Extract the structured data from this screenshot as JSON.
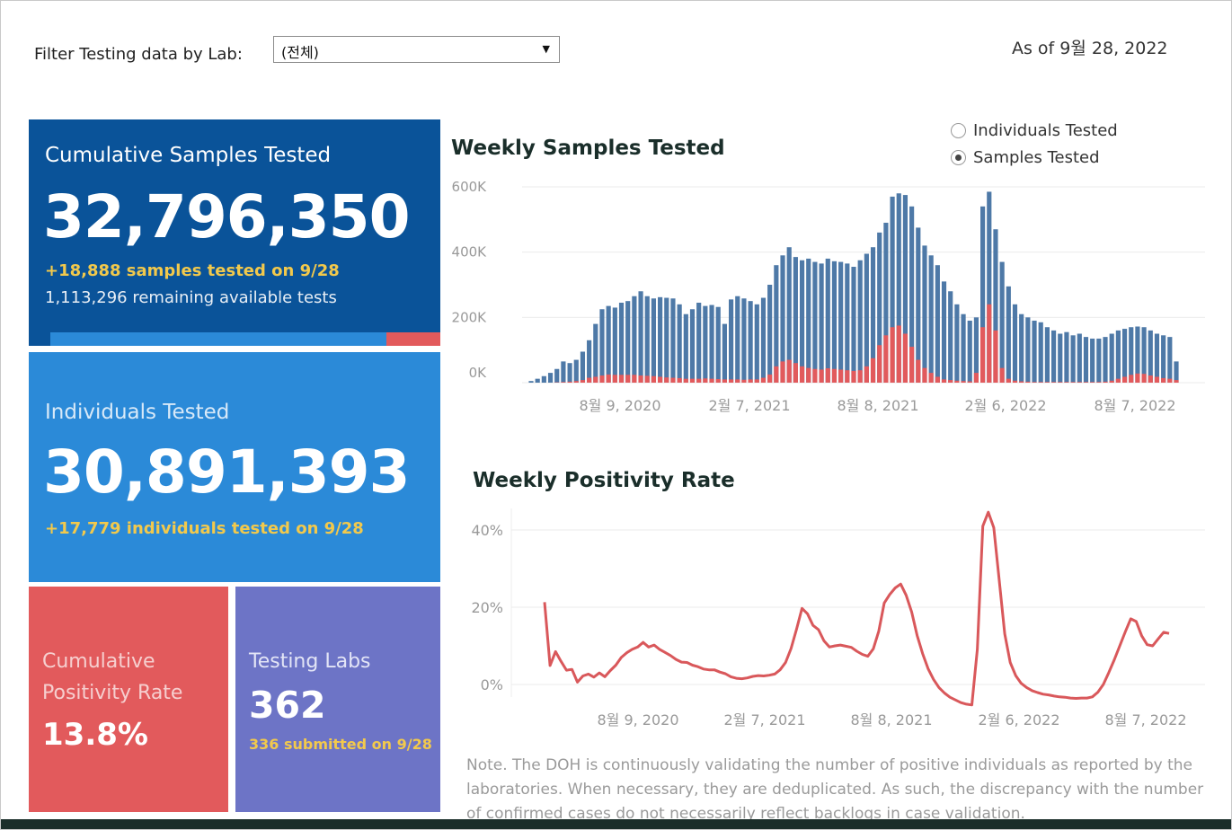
{
  "filter": {
    "label": "Filter Testing data by Lab:",
    "value": "(전체)"
  },
  "as_of": "As of 9월 28, 2022",
  "cards": {
    "cumulative": {
      "title": "Cumulative Samples Tested",
      "value": "32,796,350",
      "today": "+18,888 samples tested on 9/28",
      "remaining": "1,113,296 remaining available tests",
      "capacity_used_fraction": 0.86
    },
    "individuals": {
      "title": "Individuals Tested",
      "value": "30,891,393",
      "today": "+17,779  individuals  tested on 9/28"
    },
    "positivity": {
      "title_line1": "Cumulative",
      "title_line2": "Positivity Rate",
      "value": "13.8%"
    },
    "labs": {
      "title": "Testing Labs",
      "value": "362",
      "submitted": "336 submitted on 9/28"
    }
  },
  "toggle": {
    "options": [
      "Individuals Tested",
      "Samples Tested"
    ],
    "selected": "Samples Tested"
  },
  "colors": {
    "samples": "#4e79a7",
    "positives": "#e25a5c",
    "positivity_line": "#d9585b"
  },
  "chart_data": [
    {
      "type": "bar",
      "title": "Weekly Samples Tested",
      "x_ticks": [
        "8월 9, 2020",
        "2월 7, 2021",
        "8월 8, 2021",
        "2월 6, 2022",
        "8월 7, 2022"
      ],
      "y_ticks": [
        "600K",
        "400K",
        "200K",
        "0K"
      ],
      "ylim": [
        0,
        600000
      ],
      "series": [
        {
          "values": [
            5000,
            12000,
            20000,
            30000,
            42000,
            65000,
            60000,
            70000,
            95000,
            130000,
            180000,
            225000,
            235000,
            230000,
            245000,
            250000,
            265000,
            280000,
            265000,
            258000,
            262000,
            260000,
            258000,
            240000,
            210000,
            225000,
            245000,
            235000,
            238000,
            232000,
            180000,
            255000,
            265000,
            258000,
            250000,
            240000,
            260000,
            300000,
            360000,
            390000,
            415000,
            385000,
            375000,
            380000,
            370000,
            365000,
            380000,
            372000,
            370000,
            365000,
            355000,
            375000,
            395000,
            415000,
            460000,
            490000,
            570000,
            580000,
            575000,
            540000,
            475000,
            420000,
            390000,
            360000,
            310000,
            280000,
            240000,
            210000,
            190000,
            200000,
            540000,
            585000,
            470000,
            370000,
            295000,
            240000,
            210000,
            200000,
            190000,
            185000,
            170000,
            160000,
            150000,
            155000,
            145000,
            150000,
            140000,
            135000,
            135000,
            140000,
            150000,
            160000,
            165000,
            170000,
            172000,
            170000,
            160000,
            150000,
            145000,
            140000,
            65000
          ]
        },
        {
          "values": [
            0,
            0,
            0,
            0,
            1000,
            2000,
            3000,
            5000,
            8000,
            15000,
            18000,
            22000,
            25000,
            24000,
            24000,
            24000,
            24000,
            22000,
            21000,
            20000,
            18000,
            16000,
            15000,
            14000,
            12000,
            12000,
            12000,
            13000,
            12000,
            11000,
            10000,
            10000,
            10000,
            9000,
            10000,
            10000,
            15000,
            25000,
            50000,
            65000,
            70000,
            60000,
            50000,
            45000,
            42000,
            40000,
            44000,
            42000,
            40000,
            38000,
            36000,
            38000,
            50000,
            75000,
            115000,
            145000,
            170000,
            175000,
            150000,
            110000,
            70000,
            45000,
            30000,
            18000,
            10000,
            8000,
            6000,
            5000,
            4000,
            30000,
            170000,
            240000,
            160000,
            45000,
            12000,
            6000,
            4000,
            3000,
            2000,
            2000,
            2000,
            2000,
            2000,
            2000,
            2000,
            2000,
            2000,
            2000,
            2000,
            3000,
            6000,
            12000,
            18000,
            24000,
            28000,
            27000,
            22000,
            18000,
            14000,
            12000,
            8000
          ]
        }
      ]
    },
    {
      "type": "line",
      "title": "Weekly Positivity Rate",
      "x_ticks": [
        "8월 9, 2020",
        "2월 7, 2021",
        "8월 8, 2021",
        "2월 6, 2022",
        "8월 7, 2022"
      ],
      "y_ticks": [
        "40%",
        "20%",
        "0%"
      ],
      "ylim": [
        0,
        45
      ],
      "series": [
        {
          "values": [
            21.3,
            4.9,
            8.5,
            6.0,
            3.7,
            3.9,
            0.6,
            2.2,
            2.7,
            1.9,
            3.0,
            2.0,
            3.6,
            5.0,
            7.0,
            8.2,
            9.1,
            9.7,
            10.9,
            9.7,
            10.2,
            9.1,
            8.3,
            7.5,
            6.5,
            5.8,
            5.7,
            5.0,
            4.6,
            4.0,
            3.8,
            3.8,
            3.2,
            2.8,
            2.0,
            1.6,
            1.5,
            1.7,
            2.1,
            2.3,
            2.2,
            2.4,
            2.7,
            3.8,
            5.7,
            9.3,
            14.3,
            19.7,
            18.3,
            15.3,
            14.2,
            11.3,
            9.7,
            10.0,
            10.2,
            9.9,
            9.6,
            8.6,
            7.8,
            7.3,
            9.2,
            13.8,
            21.1,
            23.3,
            25.0,
            26.0,
            23.1,
            18.8,
            12.7,
            8.0,
            4.1,
            1.3,
            -0.8,
            -2.2,
            -3.3,
            -4.0,
            -4.7,
            -5.1,
            -5.3,
            9.1,
            41.0,
            44.6,
            40.6,
            26.9,
            13.1,
            5.7,
            2.3,
            0.3,
            -0.8,
            -1.6,
            -2.1,
            -2.5,
            -2.7,
            -3.0,
            -3.2,
            -3.3,
            -3.5,
            -3.6,
            -3.5,
            -3.5,
            -3.2,
            -2.0,
            0.0,
            3.1,
            6.4,
            10.0,
            13.6,
            17.0,
            16.3,
            12.6,
            10.3,
            10.0,
            11.8,
            13.5,
            13.2
          ]
        }
      ]
    }
  ],
  "note": "Note. The DOH is continuously validating the number of positive individuals as reported by the laboratories. When necessary, they are deduplicated. As such, the discrepancy with the number of confirmed cases do not necessarily reflect backlogs in case validation."
}
